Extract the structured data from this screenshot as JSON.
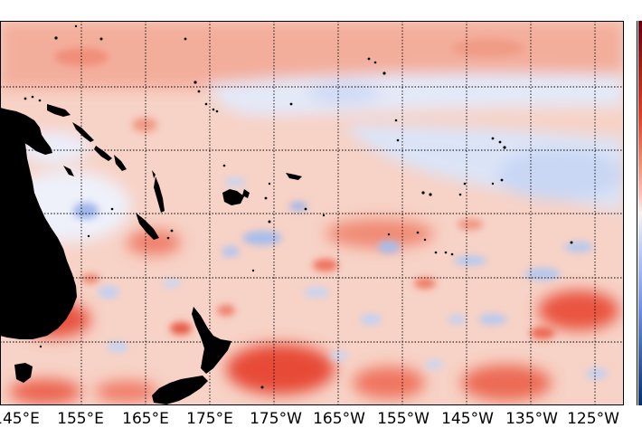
{
  "map": {
    "longitude_labels": [
      "145°E",
      "155°E",
      "165°E",
      "175°E",
      "175°W",
      "165°W",
      "155°W",
      "145°W",
      "135°W",
      "125°W"
    ],
    "colormap": {
      "warm": "#e04030",
      "warm_light": "#f6c2b2",
      "neutral": "#fbf1ee",
      "cool_light": "#d5e0f6",
      "cool": "#6f8fe0",
      "land": "#000000",
      "colorbar_top": "#67000d",
      "colorbar_bottom": "#08306b"
    },
    "gridlines": "dotted",
    "features": [
      "australia",
      "papua-new-guinea",
      "new-caledonia",
      "new-zealand-north-island",
      "new-zealand-south-island",
      "tasmania",
      "pacific-islands"
    ]
  }
}
